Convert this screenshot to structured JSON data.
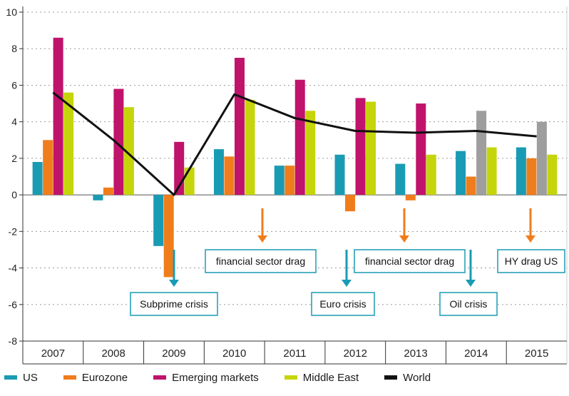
{
  "chart_data": {
    "type": "bar",
    "categories": [
      "2007",
      "2008",
      "2009",
      "2010",
      "2011",
      "2012",
      "2013",
      "2014",
      "2015"
    ],
    "ylim": [
      -8,
      10
    ],
    "yticks": [
      10,
      8,
      6,
      4,
      2,
      0,
      -2,
      -4,
      -6,
      -8
    ],
    "series": [
      {
        "name": "US",
        "color": "#1a9bb4",
        "values": [
          1.8,
          -0.3,
          -2.8,
          2.5,
          1.6,
          2.2,
          1.7,
          2.4,
          2.6
        ]
      },
      {
        "name": "Eurozone",
        "color": "#f07d1c",
        "values": [
          3.0,
          0.4,
          -4.5,
          2.1,
          1.6,
          -0.9,
          -0.3,
          1.0,
          2.0
        ]
      },
      {
        "name": "Emerging markets",
        "color": "#c0136b",
        "values": [
          8.6,
          5.8,
          2.9,
          7.5,
          6.3,
          5.3,
          5.0,
          4.6,
          4.0
        ],
        "alt_color": "#9e9e9e",
        "alt_from": "2014"
      },
      {
        "name": "Middle East",
        "color": "#c5d50b",
        "values": [
          5.6,
          4.8,
          1.5,
          5.2,
          4.6,
          5.1,
          2.2,
          2.6,
          2.2
        ]
      },
      {
        "name": "World",
        "type": "line",
        "color": "#111111",
        "values": [
          5.6,
          3.0,
          0.0,
          5.5,
          4.2,
          3.5,
          3.4,
          3.5,
          3.2
        ]
      }
    ],
    "annotations": [
      {
        "text": "Subprime crisis",
        "year": "2009",
        "arrow_color": "#1a9bb4"
      },
      {
        "text": "financial sector drag",
        "year": "2010",
        "arrow_color": "#f07d1c"
      },
      {
        "text": "Euro crisis",
        "year": "2012",
        "arrow_color": "#1a9bb4"
      },
      {
        "text": "financial sector drag",
        "year": "2013",
        "arrow_color": "#f07d1c"
      },
      {
        "text": "Oil crisis",
        "year": "2014",
        "arrow_color": "#1a9bb4"
      },
      {
        "text": "HY drag US",
        "year": "2015",
        "arrow_color": "#f07d1c"
      }
    ]
  },
  "legend": [
    {
      "label": "US",
      "color": "#1a9bb4"
    },
    {
      "label": "Eurozone",
      "color": "#f07d1c"
    },
    {
      "label": "Emerging markets",
      "color": "#c0136b"
    },
    {
      "label": "Middle East",
      "color": "#c5d50b"
    },
    {
      "label": "World",
      "color": "#111111"
    }
  ]
}
